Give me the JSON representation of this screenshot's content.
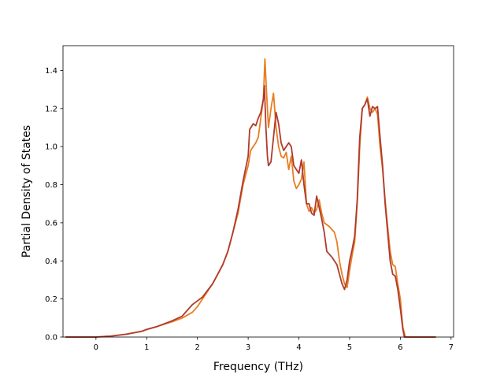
{
  "chart_data": {
    "type": "line",
    "title": "",
    "xlabel": "Frequency (THz)",
    "ylabel": "Partial Density of States",
    "xlim": [
      -0.65,
      7.05
    ],
    "ylim": [
      0,
      1.53
    ],
    "grid": false,
    "legend": "none",
    "x_ticks": [
      0,
      1,
      2,
      3,
      4,
      5,
      6,
      7
    ],
    "x_tick_labels": [
      "0",
      "1",
      "2",
      "3",
      "4",
      "5",
      "6",
      "7"
    ],
    "y_ticks": [
      0.0,
      0.2,
      0.4,
      0.6,
      0.8,
      1.0,
      1.2,
      1.4
    ],
    "y_tick_labels": [
      "0.0",
      "0.2",
      "0.4",
      "0.6",
      "0.8",
      "1.0",
      "1.2",
      "1.4"
    ],
    "series": [
      {
        "color": "#e67e22",
        "points": [
          [
            -0.6,
            0.0
          ],
          [
            0.0,
            0.0
          ],
          [
            0.3,
            0.005
          ],
          [
            0.6,
            0.015
          ],
          [
            0.9,
            0.03
          ],
          [
            1.0,
            0.04
          ],
          [
            1.2,
            0.055
          ],
          [
            1.5,
            0.08
          ],
          [
            1.7,
            0.1
          ],
          [
            1.9,
            0.13
          ],
          [
            2.0,
            0.16
          ],
          [
            2.1,
            0.2
          ],
          [
            2.3,
            0.28
          ],
          [
            2.5,
            0.38
          ],
          [
            2.6,
            0.45
          ],
          [
            2.7,
            0.55
          ],
          [
            2.8,
            0.65
          ],
          [
            2.9,
            0.8
          ],
          [
            3.0,
            0.9
          ],
          [
            3.05,
            0.98
          ],
          [
            3.1,
            1.0
          ],
          [
            3.15,
            1.02
          ],
          [
            3.2,
            1.05
          ],
          [
            3.25,
            1.15
          ],
          [
            3.3,
            1.25
          ],
          [
            3.33,
            1.46
          ],
          [
            3.36,
            1.3
          ],
          [
            3.4,
            1.1
          ],
          [
            3.45,
            1.2
          ],
          [
            3.5,
            1.28
          ],
          [
            3.55,
            1.1
          ],
          [
            3.6,
            1.0
          ],
          [
            3.65,
            0.95
          ],
          [
            3.7,
            0.94
          ],
          [
            3.75,
            0.97
          ],
          [
            3.8,
            0.88
          ],
          [
            3.85,
            0.95
          ],
          [
            3.9,
            0.82
          ],
          [
            3.95,
            0.78
          ],
          [
            4.0,
            0.8
          ],
          [
            4.05,
            0.83
          ],
          [
            4.1,
            0.92
          ],
          [
            4.15,
            0.7
          ],
          [
            4.2,
            0.66
          ],
          [
            4.25,
            0.68
          ],
          [
            4.3,
            0.65
          ],
          [
            4.35,
            0.67
          ],
          [
            4.4,
            0.72
          ],
          [
            4.45,
            0.65
          ],
          [
            4.5,
            0.6
          ],
          [
            4.6,
            0.58
          ],
          [
            4.7,
            0.55
          ],
          [
            4.75,
            0.5
          ],
          [
            4.8,
            0.4
          ],
          [
            4.85,
            0.33
          ],
          [
            4.9,
            0.28
          ],
          [
            4.95,
            0.26
          ],
          [
            5.0,
            0.35
          ],
          [
            5.05,
            0.43
          ],
          [
            5.1,
            0.5
          ],
          [
            5.15,
            0.7
          ],
          [
            5.2,
            1.0
          ],
          [
            5.25,
            1.2
          ],
          [
            5.3,
            1.22
          ],
          [
            5.35,
            1.26
          ],
          [
            5.4,
            1.2
          ],
          [
            5.45,
            1.18
          ],
          [
            5.5,
            1.2
          ],
          [
            5.55,
            1.17
          ],
          [
            5.6,
            1.0
          ],
          [
            5.65,
            0.88
          ],
          [
            5.7,
            0.72
          ],
          [
            5.75,
            0.58
          ],
          [
            5.8,
            0.45
          ],
          [
            5.85,
            0.38
          ],
          [
            5.9,
            0.37
          ],
          [
            5.95,
            0.28
          ],
          [
            6.0,
            0.2
          ],
          [
            6.05,
            0.05
          ],
          [
            6.1,
            0.0
          ],
          [
            6.7,
            0.0
          ]
        ]
      },
      {
        "color": "#b03a2e",
        "points": [
          [
            -0.6,
            0.0
          ],
          [
            0.0,
            0.0
          ],
          [
            0.3,
            0.005
          ],
          [
            0.6,
            0.015
          ],
          [
            0.9,
            0.03
          ],
          [
            1.0,
            0.04
          ],
          [
            1.2,
            0.055
          ],
          [
            1.5,
            0.085
          ],
          [
            1.7,
            0.11
          ],
          [
            1.8,
            0.14
          ],
          [
            1.9,
            0.17
          ],
          [
            2.0,
            0.19
          ],
          [
            2.1,
            0.21
          ],
          [
            2.3,
            0.28
          ],
          [
            2.5,
            0.38
          ],
          [
            2.6,
            0.45
          ],
          [
            2.7,
            0.55
          ],
          [
            2.8,
            0.67
          ],
          [
            2.9,
            0.82
          ],
          [
            3.0,
            0.95
          ],
          [
            3.03,
            1.09
          ],
          [
            3.1,
            1.12
          ],
          [
            3.15,
            1.11
          ],
          [
            3.2,
            1.15
          ],
          [
            3.25,
            1.18
          ],
          [
            3.3,
            1.25
          ],
          [
            3.32,
            1.32
          ],
          [
            3.35,
            1.1
          ],
          [
            3.38,
            0.95
          ],
          [
            3.4,
            0.9
          ],
          [
            3.45,
            0.92
          ],
          [
            3.5,
            1.05
          ],
          [
            3.55,
            1.18
          ],
          [
            3.6,
            1.12
          ],
          [
            3.65,
            1.02
          ],
          [
            3.7,
            0.98
          ],
          [
            3.75,
            1.0
          ],
          [
            3.8,
            1.02
          ],
          [
            3.85,
            1.0
          ],
          [
            3.9,
            0.9
          ],
          [
            3.95,
            0.88
          ],
          [
            4.0,
            0.86
          ],
          [
            4.05,
            0.93
          ],
          [
            4.1,
            0.8
          ],
          [
            4.15,
            0.7
          ],
          [
            4.2,
            0.7
          ],
          [
            4.25,
            0.65
          ],
          [
            4.3,
            0.64
          ],
          [
            4.35,
            0.74
          ],
          [
            4.4,
            0.68
          ],
          [
            4.45,
            0.62
          ],
          [
            4.5,
            0.55
          ],
          [
            4.55,
            0.45
          ],
          [
            4.65,
            0.42
          ],
          [
            4.75,
            0.38
          ],
          [
            4.8,
            0.33
          ],
          [
            4.85,
            0.28
          ],
          [
            4.9,
            0.25
          ],
          [
            4.95,
            0.3
          ],
          [
            5.0,
            0.4
          ],
          [
            5.05,
            0.46
          ],
          [
            5.1,
            0.53
          ],
          [
            5.15,
            0.72
          ],
          [
            5.2,
            1.05
          ],
          [
            5.25,
            1.2
          ],
          [
            5.3,
            1.22
          ],
          [
            5.35,
            1.25
          ],
          [
            5.4,
            1.16
          ],
          [
            5.45,
            1.21
          ],
          [
            5.5,
            1.2
          ],
          [
            5.55,
            1.21
          ],
          [
            5.6,
            1.05
          ],
          [
            5.65,
            0.9
          ],
          [
            5.7,
            0.7
          ],
          [
            5.75,
            0.55
          ],
          [
            5.8,
            0.4
          ],
          [
            5.85,
            0.33
          ],
          [
            5.9,
            0.32
          ],
          [
            5.95,
            0.25
          ],
          [
            6.0,
            0.15
          ],
          [
            6.05,
            0.04
          ],
          [
            6.08,
            0.0
          ],
          [
            6.7,
            0.0
          ]
        ]
      }
    ]
  }
}
